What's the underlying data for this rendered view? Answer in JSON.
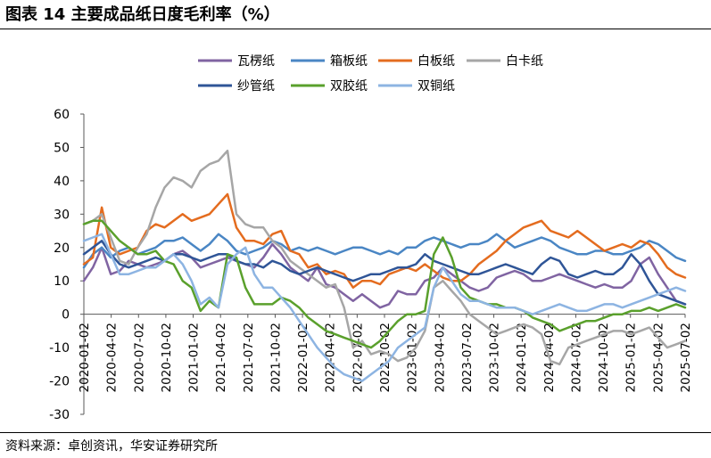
{
  "header": {
    "title": "图表 14 主要成品纸日度毛利率（%）"
  },
  "footer": {
    "source": "资料来源：卓创资讯，华安证券研究所"
  },
  "chart_data": {
    "type": "line",
    "title": "图表 14 主要成品纸日度毛利率（%）",
    "xlabel": "",
    "ylabel": "",
    "ylim": [
      -30,
      60
    ],
    "yticks": [
      60,
      50,
      40,
      30,
      20,
      10,
      0,
      -10,
      -20,
      -30
    ],
    "x_tick_labels": [
      "2020-01-02",
      "2020-04-02",
      "2020-07-02",
      "2020-10-02",
      "2021-01-02",
      "2021-04-02",
      "2021-07-02",
      "2021-10-02",
      "2022-01-02",
      "2022-04-02",
      "2022-07-02",
      "2022-10-02",
      "2023-01-02",
      "2023-04-02",
      "2023-07-02",
      "2023-10-02",
      "2024-01-02",
      "2024-04-02",
      "2024-07-02",
      "2024-10-02",
      "2025-01-02",
      "2025-04-02",
      "2025-07-02"
    ],
    "x": [
      "2020-01",
      "2020-02",
      "2020-03",
      "2020-04",
      "2020-05",
      "2020-06",
      "2020-07",
      "2020-08",
      "2020-09",
      "2020-10",
      "2020-11",
      "2020-12",
      "2021-01",
      "2021-02",
      "2021-03",
      "2021-04",
      "2021-05",
      "2021-06",
      "2021-07",
      "2021-08",
      "2021-09",
      "2021-10",
      "2021-11",
      "2021-12",
      "2022-01",
      "2022-02",
      "2022-03",
      "2022-04",
      "2022-05",
      "2022-06",
      "2022-07",
      "2022-08",
      "2022-09",
      "2022-10",
      "2022-11",
      "2022-12",
      "2023-01",
      "2023-02",
      "2023-03",
      "2023-04",
      "2023-05",
      "2023-06",
      "2023-07",
      "2023-08",
      "2023-09",
      "2023-10",
      "2023-11",
      "2023-12",
      "2024-01",
      "2024-02",
      "2024-03",
      "2024-04",
      "2024-05",
      "2024-06",
      "2024-07",
      "2024-08",
      "2024-09",
      "2024-10",
      "2024-11",
      "2024-12",
      "2025-01",
      "2025-02",
      "2025-03",
      "2025-04",
      "2025-05",
      "2025-06",
      "2025-07",
      "2025-08"
    ],
    "grid": false,
    "legend_position": "top",
    "series": [
      {
        "name": "瓦楞纸",
        "color": "#8064A2",
        "values": [
          10,
          14,
          20,
          12,
          13,
          16,
          15,
          14,
          15,
          16,
          18,
          19,
          17,
          14,
          15,
          16,
          17,
          16,
          15,
          14,
          17,
          21,
          18,
          14,
          12,
          10,
          14,
          9,
          8,
          6,
          4,
          6,
          4,
          2,
          3,
          7,
          6,
          6,
          10,
          11,
          14,
          12,
          10,
          8,
          7,
          8,
          11,
          12,
          13,
          12,
          10,
          10,
          11,
          12,
          11,
          10,
          9,
          8,
          9,
          8,
          8,
          10,
          15,
          17,
          12,
          8,
          4,
          3
        ]
      },
      {
        "name": "箱板纸",
        "color": "#4A86C4",
        "values": [
          14,
          18,
          20,
          17,
          19,
          20,
          18,
          19,
          20,
          22,
          22,
          23,
          21,
          19,
          21,
          24,
          22,
          19,
          18,
          19,
          20,
          22,
          21,
          19,
          20,
          19,
          20,
          19,
          18,
          19,
          20,
          20,
          19,
          18,
          19,
          18,
          20,
          20,
          22,
          23,
          22,
          21,
          20,
          21,
          21,
          22,
          24,
          22,
          20,
          21,
          22,
          23,
          22,
          20,
          19,
          18,
          18,
          19,
          19,
          18,
          18,
          19,
          20,
          22,
          21,
          19,
          17,
          16
        ]
      },
      {
        "name": "白板纸",
        "color": "#E46C1F",
        "values": [
          15,
          17,
          32,
          20,
          18,
          19,
          20,
          25,
          27,
          26,
          28,
          30,
          28,
          29,
          30,
          33,
          36,
          26,
          22,
          22,
          21,
          24,
          25,
          19,
          18,
          14,
          15,
          12,
          13,
          12,
          8,
          10,
          10,
          9,
          12,
          13,
          14,
          13,
          15,
          13,
          11,
          10,
          10,
          12,
          15,
          17,
          19,
          22,
          24,
          26,
          27,
          28,
          25,
          24,
          23,
          25,
          23,
          21,
          19,
          20,
          21,
          20,
          22,
          21,
          18,
          14,
          12,
          11
        ]
      },
      {
        "name": "白卡纸",
        "color": "#A6A6A6",
        "values": [
          27,
          28,
          30,
          23,
          16,
          15,
          20,
          24,
          32,
          38,
          41,
          40,
          38,
          43,
          45,
          46,
          49,
          30,
          27,
          26,
          26,
          22,
          20,
          16,
          14,
          12,
          10,
          8,
          9,
          2,
          -10,
          -8,
          -12,
          -11,
          -12,
          -14,
          -13,
          -10,
          -5,
          8,
          10,
          7,
          4,
          0,
          -2,
          -4,
          -6,
          -5,
          -4,
          -3,
          -4,
          -6,
          -14,
          -15,
          -10,
          -9,
          -8,
          -7,
          -6,
          -5,
          -5,
          -6,
          -5,
          -4,
          -7,
          -10,
          -9,
          -8
        ]
      },
      {
        "name": "纱管纸",
        "color": "#2F5597",
        "values": [
          18,
          20,
          22,
          18,
          15,
          14,
          15,
          16,
          17,
          16,
          18,
          18,
          17,
          16,
          17,
          18,
          18,
          16,
          15,
          15,
          14,
          16,
          15,
          13,
          12,
          13,
          14,
          13,
          12,
          11,
          10,
          11,
          12,
          12,
          13,
          14,
          14,
          15,
          18,
          16,
          15,
          14,
          13,
          12,
          12,
          13,
          14,
          15,
          14,
          13,
          12,
          15,
          17,
          16,
          12,
          11,
          12,
          13,
          12,
          12,
          14,
          18,
          15,
          10,
          6,
          5,
          4,
          3
        ]
      },
      {
        "name": "双胶纸",
        "color": "#5AA02C",
        "values": [
          27,
          28,
          28,
          25,
          22,
          20,
          18,
          18,
          19,
          16,
          15,
          10,
          8,
          1,
          4,
          2,
          18,
          17,
          8,
          3,
          3,
          3,
          5,
          4,
          2,
          -1,
          -3,
          -5,
          -6,
          -7,
          -8,
          -9,
          -10,
          -8,
          -5,
          -2,
          0,
          0,
          1,
          18,
          23,
          17,
          8,
          5,
          4,
          3,
          3,
          2,
          2,
          1,
          -1,
          -2,
          -3,
          -5,
          -4,
          -3,
          -2,
          -2,
          -1,
          0,
          0,
          1,
          1,
          2,
          1,
          2,
          3,
          2
        ]
      },
      {
        "name": "双铜纸",
        "color": "#8DB4E2",
        "values": [
          22,
          23,
          24,
          18,
          12,
          12,
          13,
          14,
          14,
          16,
          18,
          15,
          10,
          3,
          5,
          2,
          15,
          18,
          20,
          12,
          8,
          8,
          5,
          2,
          -2,
          -6,
          -10,
          -13,
          -16,
          -18,
          -19,
          -20,
          -18,
          -16,
          -14,
          -10,
          -8,
          -6,
          -4,
          8,
          14,
          10,
          6,
          4,
          4,
          3,
          2,
          2,
          2,
          1,
          0,
          1,
          2,
          3,
          2,
          1,
          1,
          2,
          3,
          3,
          2,
          3,
          4,
          5,
          6,
          7,
          8,
          7
        ]
      }
    ]
  }
}
